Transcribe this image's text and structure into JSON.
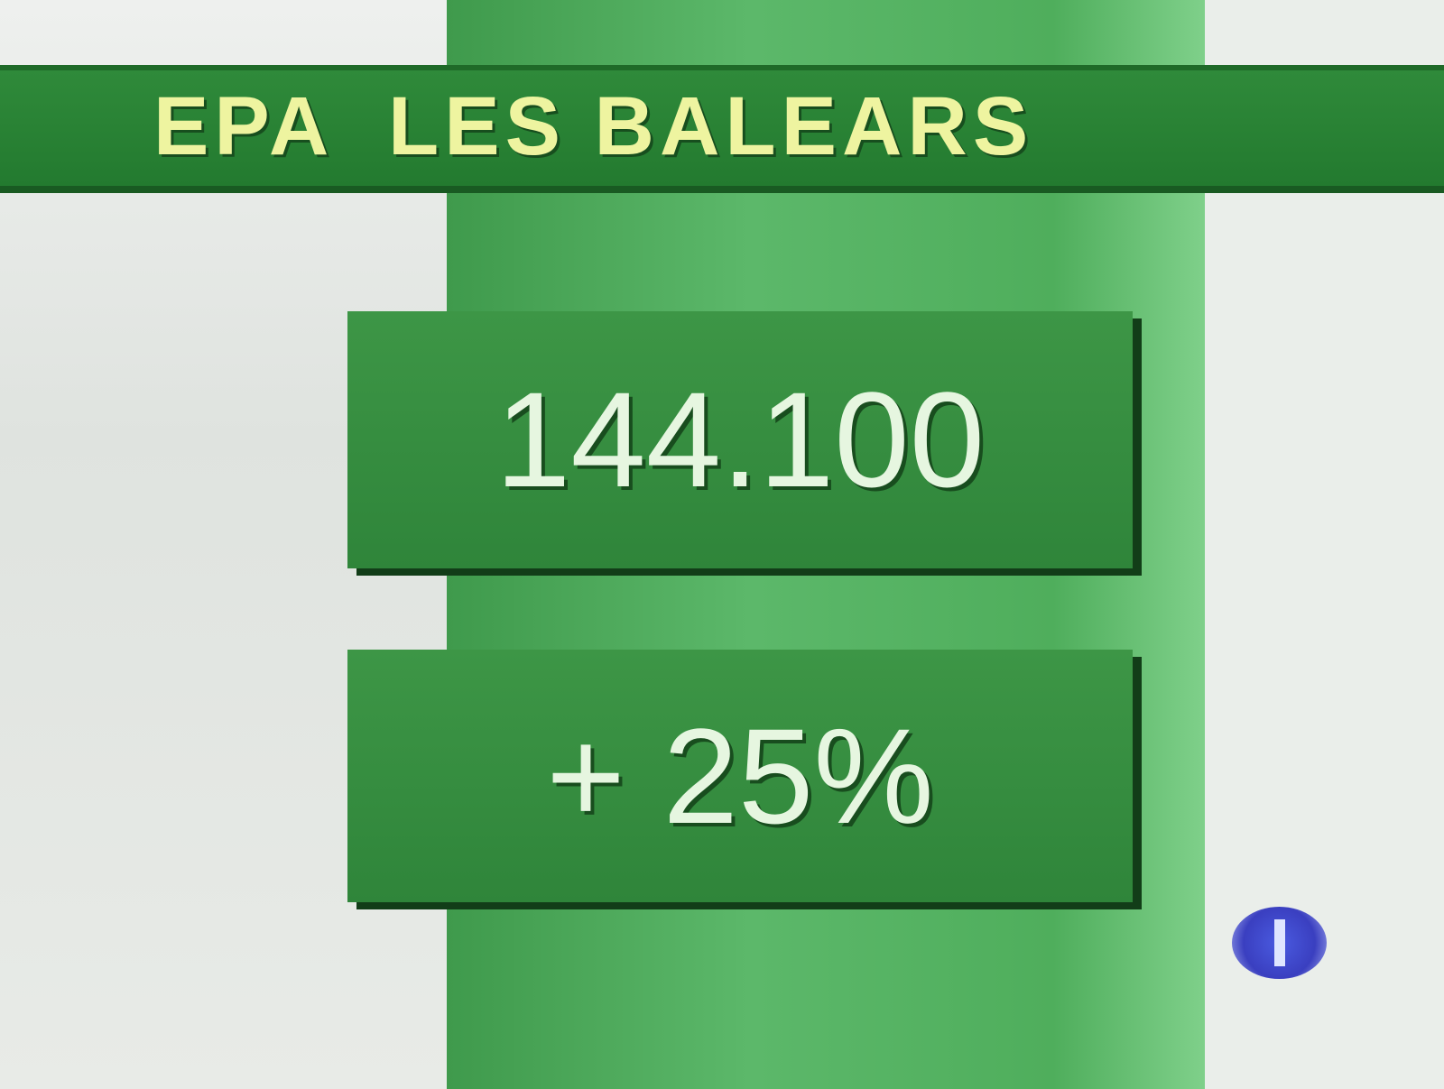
{
  "header": {
    "title": "EPA  LES BALEARS"
  },
  "stats": [
    {
      "value": "144.100"
    },
    {
      "value": "+ 25%"
    }
  ],
  "channel_logo": {
    "icon": "tve-1-logo",
    "color": "#3a3fc0"
  },
  "colors": {
    "accent": "#2f853a",
    "title_text": "#eef4a0"
  }
}
